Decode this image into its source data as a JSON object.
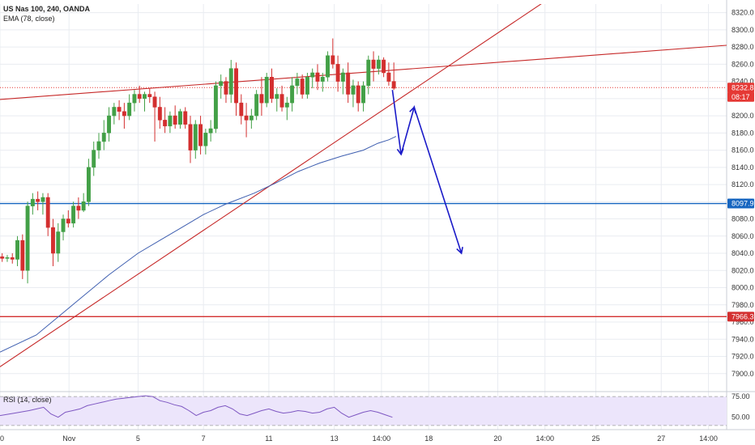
{
  "chart_data": {
    "type": "candlestick",
    "symbol_title": "US Nas 100, 240, OANDA",
    "indicator_ema": "EMA (78, close)",
    "indicator_rsi": "RSI (14, close)",
    "y_range": [
      7880,
      8330
    ],
    "y_ticks": [
      "8320.0",
      "8300.0",
      "8280.0",
      "8260.0",
      "8240.0",
      "8220.0",
      "8200.0",
      "8180.0",
      "8160.0",
      "8140.0",
      "8120.0",
      "8100.0",
      "8080.0",
      "8060.0",
      "8040.0",
      "8020.0",
      "8000.0",
      "7980.0",
      "7960.0",
      "7940.0",
      "7920.0",
      "7900.0"
    ],
    "rsi_range": [
      35,
      80
    ],
    "rsi_ticks": [
      "75.00",
      "50.00"
    ],
    "x_range": [
      0,
      100
    ],
    "x_ticks": [
      {
        "label": "0",
        "x": 0
      },
      {
        "label": "Nov",
        "x": 9.5
      },
      {
        "label": "5",
        "x": 19
      },
      {
        "label": "7",
        "x": 28
      },
      {
        "label": "11",
        "x": 37
      },
      {
        "label": "13",
        "x": 46
      },
      {
        "label": "14:00",
        "x": 52.5
      },
      {
        "label": "18",
        "x": 59
      },
      {
        "label": "20",
        "x": 68.5
      },
      {
        "label": "14:00",
        "x": 75
      },
      {
        "label": "25",
        "x": 82
      },
      {
        "label": "27",
        "x": 91
      },
      {
        "label": "14:00",
        "x": 97.5
      }
    ],
    "candles": [
      [
        0.3,
        8036,
        8040,
        8030,
        8034
      ],
      [
        1.0,
        8034,
        8038,
        8030,
        8035
      ],
      [
        1.7,
        8035,
        8040,
        8028,
        8033
      ],
      [
        2.4,
        8033,
        8060,
        8025,
        8055
      ],
      [
        3.1,
        8055,
        8062,
        8010,
        8020
      ],
      [
        3.8,
        8020,
        8100,
        8005,
        8095
      ],
      [
        4.5,
        8095,
        8110,
        8085,
        8103
      ],
      [
        5.2,
        8103,
        8112,
        8090,
        8100
      ],
      [
        5.9,
        8100,
        8110,
        8085,
        8105
      ],
      [
        6.6,
        8105,
        8110,
        8060,
        8070
      ],
      [
        7.3,
        8070,
        8080,
        8025,
        8040
      ],
      [
        8.0,
        8040,
        8075,
        8030,
        8065
      ],
      [
        8.7,
        8065,
        8085,
        8055,
        8080
      ],
      [
        9.4,
        8080,
        8090,
        8070,
        8075
      ],
      [
        10.1,
        8075,
        8100,
        8070,
        8095
      ],
      [
        10.8,
        8095,
        8105,
        8080,
        8090
      ],
      [
        11.5,
        8090,
        8110,
        8088,
        8100
      ],
      [
        12.2,
        8100,
        8150,
        8095,
        8140
      ],
      [
        12.9,
        8140,
        8170,
        8130,
        8160
      ],
      [
        13.6,
        8160,
        8180,
        8150,
        8170
      ],
      [
        14.3,
        8170,
        8195,
        8160,
        8180
      ],
      [
        15.0,
        8180,
        8210,
        8170,
        8200
      ],
      [
        15.7,
        8200,
        8215,
        8190,
        8210
      ],
      [
        16.4,
        8210,
        8218,
        8195,
        8205
      ],
      [
        17.1,
        8205,
        8215,
        8185,
        8200
      ],
      [
        17.8,
        8200,
        8225,
        8195,
        8215
      ],
      [
        18.5,
        8215,
        8230,
        8205,
        8225
      ],
      [
        19.2,
        8225,
        8235,
        8215,
        8220
      ],
      [
        19.9,
        8220,
        8228,
        8205,
        8225
      ],
      [
        20.6,
        8225,
        8232,
        8215,
        8222
      ],
      [
        21.3,
        8222,
        8228,
        8170,
        8210
      ],
      [
        22.0,
        8210,
        8222,
        8185,
        8195
      ],
      [
        22.7,
        8195,
        8210,
        8180,
        8188
      ],
      [
        23.4,
        8188,
        8205,
        8180,
        8200
      ],
      [
        24.1,
        8200,
        8212,
        8185,
        8190
      ],
      [
        24.8,
        8190,
        8208,
        8185,
        8205
      ],
      [
        25.5,
        8205,
        8210,
        8185,
        8190
      ],
      [
        26.2,
        8190,
        8200,
        8145,
        8160
      ],
      [
        26.9,
        8160,
        8195,
        8150,
        8190
      ],
      [
        27.6,
        8190,
        8200,
        8155,
        8165
      ],
      [
        28.3,
        8165,
        8185,
        8155,
        8180
      ],
      [
        29.0,
        8180,
        8195,
        8170,
        8185
      ],
      [
        29.7,
        8185,
        8240,
        8180,
        8235
      ],
      [
        30.4,
        8235,
        8248,
        8220,
        8240
      ],
      [
        31.1,
        8240,
        8245,
        8215,
        8225
      ],
      [
        31.8,
        8225,
        8265,
        8215,
        8255
      ],
      [
        32.5,
        8255,
        8262,
        8200,
        8215
      ],
      [
        33.2,
        8215,
        8225,
        8190,
        8200
      ],
      [
        33.9,
        8200,
        8215,
        8175,
        8195
      ],
      [
        34.6,
        8195,
        8208,
        8185,
        8200
      ],
      [
        35.3,
        8200,
        8230,
        8195,
        8225
      ],
      [
        36.0,
        8225,
        8245,
        8200,
        8215
      ],
      [
        36.7,
        8215,
        8250,
        8210,
        8245
      ],
      [
        37.4,
        8245,
        8255,
        8215,
        8220
      ],
      [
        38.1,
        8220,
        8232,
        8205,
        8225
      ],
      [
        38.8,
        8225,
        8235,
        8205,
        8210
      ],
      [
        39.5,
        8210,
        8222,
        8195,
        8215
      ],
      [
        40.2,
        8215,
        8245,
        8205,
        8235
      ],
      [
        40.9,
        8235,
        8250,
        8225,
        8243
      ],
      [
        41.6,
        8243,
        8248,
        8220,
        8225
      ],
      [
        42.3,
        8225,
        8250,
        8220,
        8245
      ],
      [
        43.0,
        8245,
        8255,
        8232,
        8250
      ],
      [
        43.7,
        8250,
        8260,
        8230,
        8240
      ],
      [
        44.4,
        8240,
        8250,
        8228,
        8245
      ],
      [
        45.1,
        8245,
        8275,
        8240,
        8270
      ],
      [
        45.8,
        8270,
        8290,
        8255,
        8260
      ],
      [
        46.5,
        8260,
        8270,
        8228,
        8240
      ],
      [
        47.2,
        8240,
        8255,
        8225,
        8250
      ],
      [
        47.9,
        8250,
        8262,
        8215,
        8225
      ],
      [
        48.6,
        8225,
        8242,
        8210,
        8235
      ],
      [
        49.3,
        8235,
        8240,
        8205,
        8215
      ],
      [
        50.0,
        8215,
        8240,
        8205,
        8235
      ],
      [
        50.7,
        8235,
        8270,
        8225,
        8265
      ],
      [
        51.4,
        8265,
        8275,
        8240,
        8255
      ],
      [
        52.1,
        8255,
        8270,
        8248,
        8265
      ],
      [
        52.8,
        8265,
        8268,
        8245,
        8250
      ],
      [
        53.5,
        8250,
        8262,
        8235,
        8240
      ],
      [
        54.2,
        8240,
        8262,
        8230,
        8232
      ]
    ],
    "ema": [
      [
        0,
        7925
      ],
      [
        5,
        7945
      ],
      [
        10,
        7980
      ],
      [
        15,
        8015
      ],
      [
        19,
        8040
      ],
      [
        22,
        8055
      ],
      [
        25,
        8070
      ],
      [
        28,
        8085
      ],
      [
        31,
        8097
      ],
      [
        35,
        8110
      ],
      [
        38,
        8122
      ],
      [
        41,
        8135
      ],
      [
        44,
        8145
      ],
      [
        47,
        8153
      ],
      [
        50,
        8160
      ],
      [
        52,
        8168
      ],
      [
        53.5,
        8172
      ],
      [
        54.5,
        8176
      ]
    ],
    "price_levels": [
      {
        "label": "8232.8",
        "value": 8232.8,
        "color": "#e53935",
        "style": "dotted"
      },
      {
        "label": "08:17",
        "value": 8222,
        "color": "#e53935",
        "style": "none"
      },
      {
        "label": "8097.9",
        "value": 8097.9,
        "color": "#1565c0",
        "style": "solid"
      },
      {
        "label": "7966.3",
        "value": 7966.3,
        "color": "#d32f2f",
        "style": "solid"
      }
    ],
    "trendlines": [
      {
        "name": "rising support",
        "color": "#c62828",
        "from": [
          0,
          7908
        ],
        "to": [
          75.5,
          8336
        ]
      },
      {
        "name": "upper channel",
        "color": "#c62828",
        "from": [
          0,
          8219
        ],
        "to": [
          100,
          8282
        ]
      }
    ],
    "projection": {
      "color": "#1a1ac8",
      "points": [
        [
          54.0,
          8230
        ],
        [
          55.2,
          8155
        ],
        [
          57.0,
          8210
        ],
        [
          63.5,
          8040
        ]
      ]
    },
    "rsi": [
      [
        0,
        52
      ],
      [
        2,
        55
      ],
      [
        4,
        58
      ],
      [
        6,
        62
      ],
      [
        7,
        54
      ],
      [
        8,
        50
      ],
      [
        9,
        56
      ],
      [
        10,
        58
      ],
      [
        11,
        60
      ],
      [
        12,
        64
      ],
      [
        13,
        66
      ],
      [
        14,
        68
      ],
      [
        15,
        70
      ],
      [
        16,
        72
      ],
      [
        17,
        73
      ],
      [
        18,
        74
      ],
      [
        19,
        75
      ],
      [
        20,
        76
      ],
      [
        21,
        75
      ],
      [
        22,
        70
      ],
      [
        23,
        68
      ],
      [
        24,
        65
      ],
      [
        25,
        63
      ],
      [
        26,
        58
      ],
      [
        27,
        52
      ],
      [
        28,
        56
      ],
      [
        29,
        58
      ],
      [
        30,
        62
      ],
      [
        31,
        64
      ],
      [
        32,
        60
      ],
      [
        33,
        54
      ],
      [
        34,
        52
      ],
      [
        35,
        55
      ],
      [
        36,
        58
      ],
      [
        37,
        60
      ],
      [
        38,
        57
      ],
      [
        39,
        55
      ],
      [
        40,
        56
      ],
      [
        41,
        58
      ],
      [
        42,
        57
      ],
      [
        43,
        55
      ],
      [
        44,
        56
      ],
      [
        45,
        60
      ],
      [
        46,
        62
      ],
      [
        47,
        55
      ],
      [
        48,
        50
      ],
      [
        49,
        53
      ],
      [
        50,
        56
      ],
      [
        51,
        58
      ],
      [
        52,
        56
      ],
      [
        53,
        53
      ],
      [
        54,
        50
      ]
    ],
    "colors": {
      "bull": "#43a047",
      "bear": "#d32f2f",
      "ema": "#3f5fb0",
      "grid": "#e9ecf1",
      "rsi_line": "#7e57c2",
      "rsi_band": "#ece5fb"
    }
  }
}
